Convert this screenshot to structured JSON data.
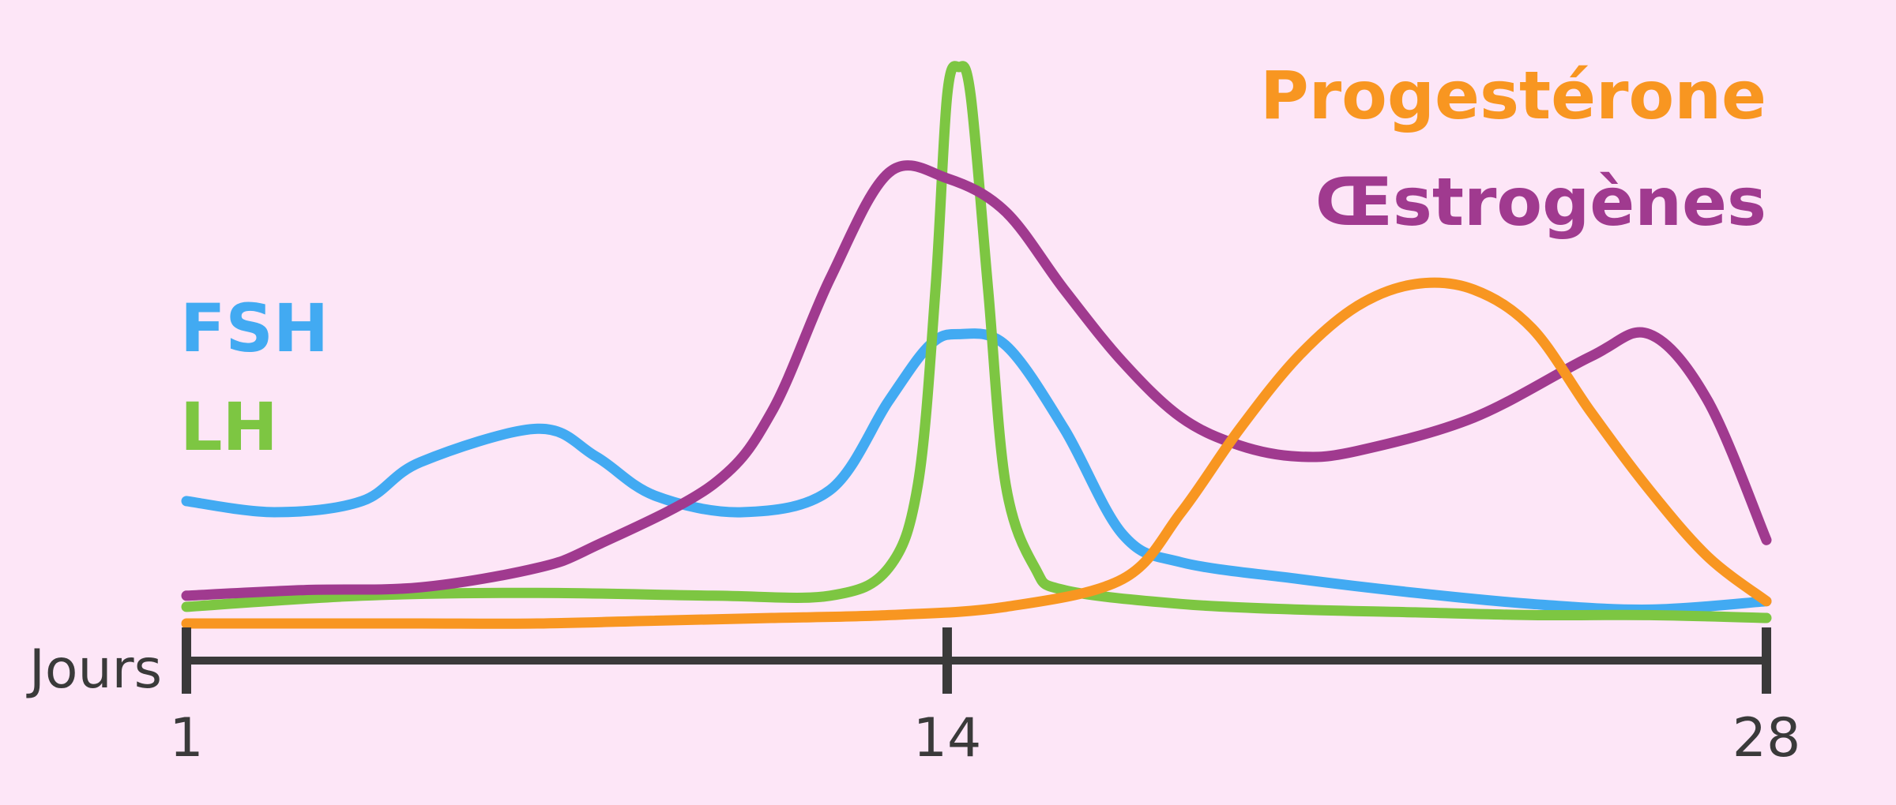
{
  "chart_data": {
    "type": "line",
    "title": "",
    "xlabel": "Jours",
    "ylabel": "",
    "xlim": [
      1,
      28
    ],
    "ylim": [
      0,
      100
    ],
    "x_ticks": [
      1,
      14,
      28
    ],
    "x_tick_labels": [
      "1",
      "14",
      "28"
    ],
    "grid": false,
    "y_axis_shown": false,
    "series": [
      {
        "name": "FSH",
        "color": "#42aaf2",
        "legend_position": "left",
        "x": [
          1,
          2.5,
          4,
          5,
          7,
          8,
          9,
          10.5,
          12,
          13,
          13.7,
          14.2,
          15,
          16,
          17,
          18,
          20,
          22,
          24,
          26,
          28
        ],
        "y": [
          22,
          20,
          22,
          29,
          35,
          30,
          23,
          20,
          24,
          40,
          50,
          52,
          50,
          35,
          16,
          11,
          8,
          5.5,
          3.5,
          2.5,
          4
        ]
      },
      {
        "name": "LH",
        "color": "#7dc642",
        "legend_position": "left",
        "x": [
          1,
          4,
          7,
          10,
          12,
          13,
          13.5,
          13.8,
          14,
          14.2,
          14.4,
          14.7,
          15,
          15.5,
          16,
          18,
          20,
          22,
          24,
          26,
          28
        ],
        "y": [
          3,
          5,
          5.5,
          5,
          5,
          10,
          25,
          60,
          95,
          100,
          95,
          60,
          25,
          10,
          6,
          3.5,
          2.5,
          2,
          1.5,
          1.5,
          1
        ]
      },
      {
        "name": "Œstrogènes",
        "color": "#a03a8f",
        "legend_position": "top-right",
        "x": [
          1,
          3,
          5,
          7,
          8,
          10,
          11,
          12,
          13,
          14,
          15,
          16,
          17,
          18,
          19,
          20,
          21,
          23,
          25,
          26,
          27,
          28
        ],
        "y": [
          5,
          6,
          6.5,
          10,
          14,
          25,
          38,
          62,
          81,
          80,
          74,
          60,
          47,
          37,
          32,
          30,
          31,
          37,
          48,
          52,
          40,
          15
        ]
      },
      {
        "name": "Progestérone",
        "color": "#f89621",
        "legend_position": "top-right",
        "x": [
          1,
          3,
          5,
          7,
          9,
          11,
          13,
          15,
          17,
          18,
          19,
          20,
          21,
          22,
          23,
          24,
          25,
          26,
          27,
          28
        ],
        "y": [
          0,
          0,
          0,
          0,
          0.5,
          1,
          1.5,
          3,
          8,
          20,
          35,
          48,
          57,
          61,
          60,
          53,
          38,
          24,
          12,
          4
        ]
      }
    ]
  }
}
